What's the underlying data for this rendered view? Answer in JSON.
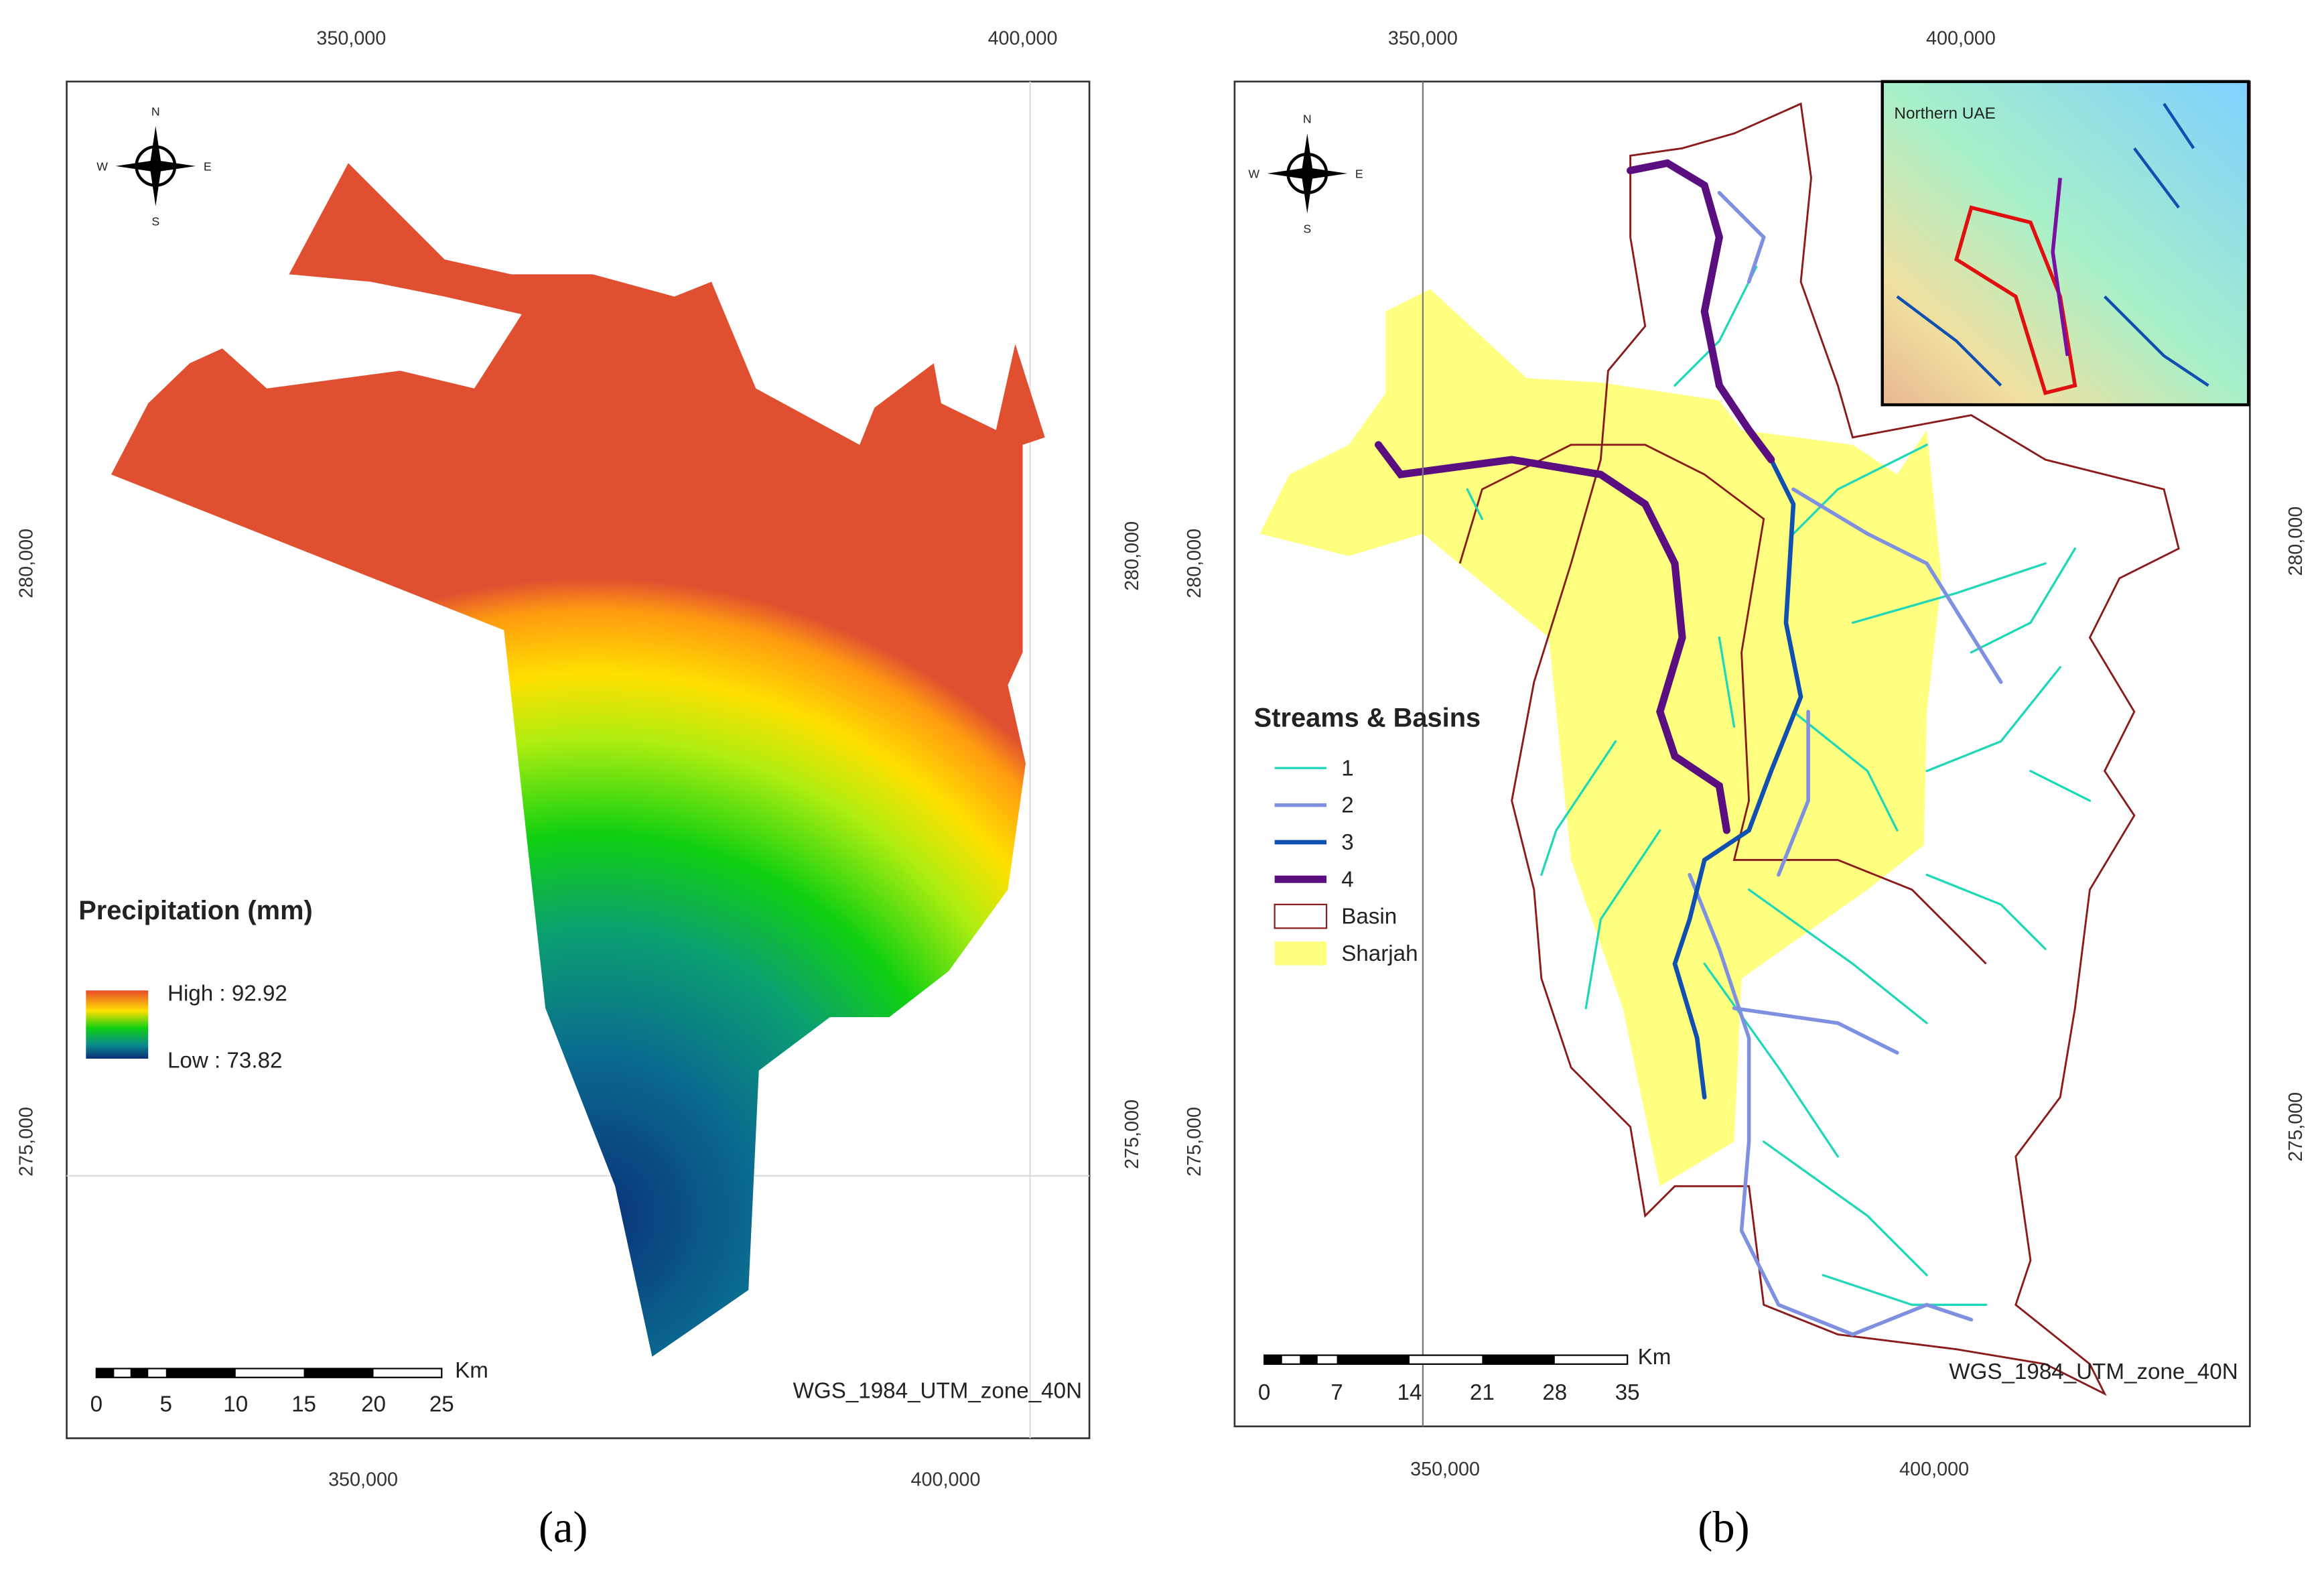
{
  "panels": [
    {
      "label": "(a)",
      "top_ticks": [
        "350,000",
        "400,000"
      ],
      "bottom_ticks": [
        "350,000",
        "400,000"
      ],
      "left_ticks": [
        "280,000",
        "275,000"
      ],
      "right_ticks": [
        "280,000",
        "275,000"
      ],
      "compass": [
        "N",
        "S",
        "W",
        "E"
      ],
      "legend_title": "Precipitation (mm)",
      "legend_items": [
        "High : 92.92",
        "Low : 73.82"
      ],
      "scale_unit": "Km",
      "scale_labels": [
        "0",
        "5",
        "10",
        "15",
        "20",
        "25"
      ],
      "projection": "WGS_1984_UTM_zone_40N"
    },
    {
      "label": "(b)",
      "top_ticks": [
        "350,000",
        "400,000"
      ],
      "bottom_ticks": [
        "350,000",
        "400,000"
      ],
      "left_ticks": [
        "280,000",
        "275,000"
      ],
      "right_ticks": [
        "280,000",
        "275,000"
      ],
      "compass": [
        "N",
        "S",
        "W",
        "E"
      ],
      "legend_title": "Streams & Basins",
      "legend_items": [
        "1",
        "2",
        "3",
        "4",
        "Basin",
        "Sharjah"
      ],
      "inset_label": "Northern UAE",
      "scale_unit": "Km",
      "scale_labels": [
        "0",
        "7",
        "14",
        "21",
        "28",
        "35"
      ],
      "projection": "WGS_1984_UTM_zone_40N"
    }
  ]
}
